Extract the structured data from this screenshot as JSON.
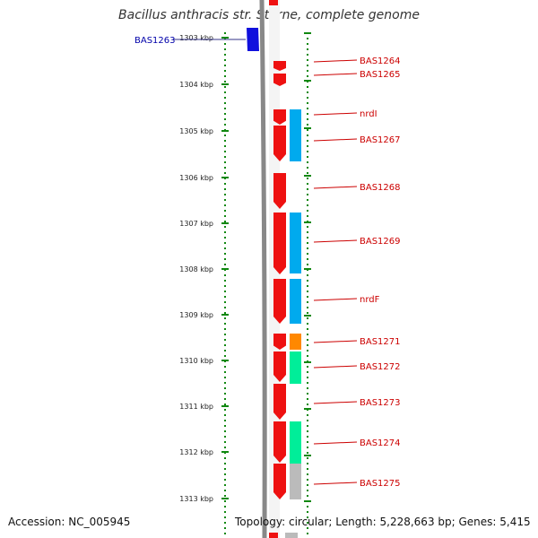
{
  "title": "Bacillus anthracis str. Sterne, complete genome",
  "ruler": {
    "ticks": [
      "1303 kbp",
      "1304 kbp",
      "1305 kbp",
      "1306 kbp",
      "1307 kbp",
      "1308 kbp",
      "1309 kbp",
      "1310 kbp",
      "1311 kbp",
      "1312 kbp",
      "1313 kbp"
    ]
  },
  "genes": [
    {
      "label": "BAS1263",
      "strand": "reverse",
      "color": "#1010dd",
      "label_color": "#0000aa"
    },
    {
      "label": "BAS1264",
      "strand": "forward",
      "color": "#ee1111",
      "label_color": "#cc0000"
    },
    {
      "label": "BAS1265",
      "strand": "forward",
      "color": "#ee1111",
      "label_color": "#cc0000"
    },
    {
      "label": "nrdI",
      "strand": "forward",
      "color": "#ee1111",
      "label_color": "#cc0000"
    },
    {
      "label": "BAS1267",
      "strand": "forward",
      "color": "#ee1111",
      "label_color": "#cc0000"
    },
    {
      "label": "BAS1268",
      "strand": "forward",
      "color": "#ee1111",
      "label_color": "#cc0000"
    },
    {
      "label": "BAS1269",
      "strand": "forward",
      "color": "#ee1111",
      "label_color": "#cc0000"
    },
    {
      "label": "nrdF",
      "strand": "forward",
      "color": "#ee1111",
      "label_color": "#cc0000"
    },
    {
      "label": "BAS1271",
      "strand": "forward",
      "color": "#ee1111",
      "label_color": "#cc0000"
    },
    {
      "label": "BAS1272",
      "strand": "forward",
      "color": "#ee1111",
      "label_color": "#cc0000"
    },
    {
      "label": "BAS1273",
      "strand": "forward",
      "color": "#ee1111",
      "label_color": "#cc0000"
    },
    {
      "label": "BAS1274",
      "strand": "forward",
      "color": "#ee1111",
      "label_color": "#cc0000"
    },
    {
      "label": "BAS1275",
      "strand": "forward",
      "color": "#ee1111",
      "label_color": "#cc0000"
    }
  ],
  "colors": {
    "backbone": "#888888",
    "forward_strand": "#ee1111",
    "reverse_strand": "#1010dd",
    "cog_blue": "#00aaee",
    "cog_orange": "#ff8800",
    "cog_green": "#00ee99",
    "cog_gray": "#bbbbbb",
    "dotted_ring": "#118811"
  },
  "footer": {
    "accession": "Accession: NC_005945",
    "topology": "Topology: circular; Length: 5,228,663 bp; Genes: 5,415"
  }
}
